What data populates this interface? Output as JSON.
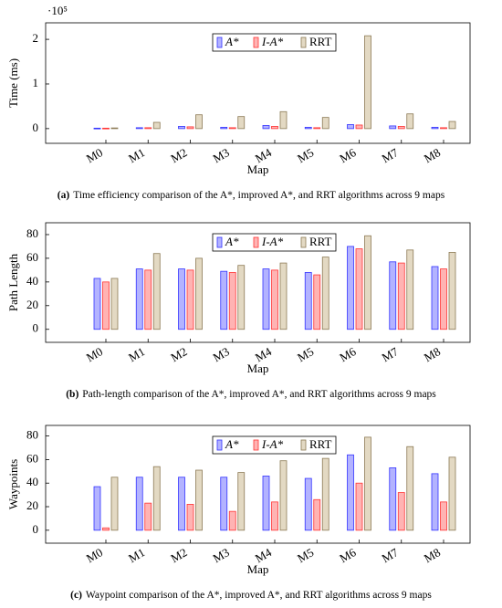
{
  "chart_data": [
    {
      "type": "bar",
      "ylabel": "Time (ms)",
      "xlabel": "Map",
      "axis_exponent": "·10⁵",
      "caption_label": "(a)",
      "caption": "Time efficiency comparison of the A*, improved A*, and RRT algorithms across 9 maps",
      "categories": [
        "M0",
        "M1",
        "M2",
        "M3",
        "M4",
        "M5",
        "M6",
        "M7",
        "M8"
      ],
      "series": [
        {
          "name": "A*",
          "color": "#b3b3ff",
          "values": [
            1000,
            2000,
            5000,
            3000,
            7000,
            3000,
            9000,
            6000,
            3000
          ]
        },
        {
          "name": "I-A*",
          "color": "#ffb3b3",
          "values": [
            1000,
            2000,
            4000,
            2000,
            5000,
            2000,
            8000,
            5000,
            2000
          ]
        },
        {
          "name": "RRT",
          "color": "#e3d9c3",
          "values": [
            1500,
            14000,
            31000,
            27000,
            38000,
            25000,
            208000,
            33000,
            16000
          ]
        }
      ],
      "ylim": [
        -33000,
        237000
      ],
      "yticks": [
        0,
        {
          "value": 100000,
          "label": "1"
        },
        {
          "value": 200000,
          "label": "2"
        }
      ],
      "legend": "top"
    },
    {
      "type": "bar",
      "ylabel": "Path Length",
      "xlabel": "Map",
      "caption_label": "(b)",
      "caption": "Path-length comparison of the A*, improved A*, and RRT algorithms across 9 maps",
      "categories": [
        "M0",
        "M1",
        "M2",
        "M3",
        "M4",
        "M5",
        "M6",
        "M7",
        "M8"
      ],
      "series": [
        {
          "name": "A*",
          "color": "#b3b3ff",
          "values": [
            43,
            51,
            51,
            49,
            51,
            48,
            70,
            57,
            53
          ]
        },
        {
          "name": "I-A*",
          "color": "#ffb3b3",
          "values": [
            40,
            50,
            50,
            48,
            50,
            46,
            68,
            56,
            51
          ]
        },
        {
          "name": "RRT",
          "color": "#e3d9c3",
          "values": [
            43,
            64,
            60,
            54,
            56,
            61,
            79,
            67,
            65
          ]
        }
      ],
      "ylim": [
        -11,
        90
      ],
      "yticks": [
        0,
        20,
        40,
        60,
        80
      ],
      "legend": "top"
    },
    {
      "type": "bar",
      "ylabel": "Waypoints",
      "xlabel": "Map",
      "caption_label": "(c)",
      "caption": "Waypoint comparison of the A*, improved A*, and RRT algorithms across 9 maps",
      "categories": [
        "M0",
        "M1",
        "M2",
        "M3",
        "M4",
        "M5",
        "M6",
        "M7",
        "M8"
      ],
      "series": [
        {
          "name": "A*",
          "color": "#b3b3ff",
          "values": [
            37,
            45,
            45,
            45,
            46,
            44,
            64,
            53,
            48
          ]
        },
        {
          "name": "I-A*",
          "color": "#ffb3b3",
          "values": [
            2,
            23,
            22,
            16,
            24,
            26,
            40,
            32,
            24
          ]
        },
        {
          "name": "RRT",
          "color": "#e3d9c3",
          "values": [
            45,
            54,
            51,
            49,
            59,
            61,
            79,
            71,
            62
          ]
        }
      ],
      "ylim": [
        -11,
        89
      ],
      "yticks": [
        0,
        20,
        40,
        60,
        80
      ],
      "legend": "top"
    }
  ]
}
